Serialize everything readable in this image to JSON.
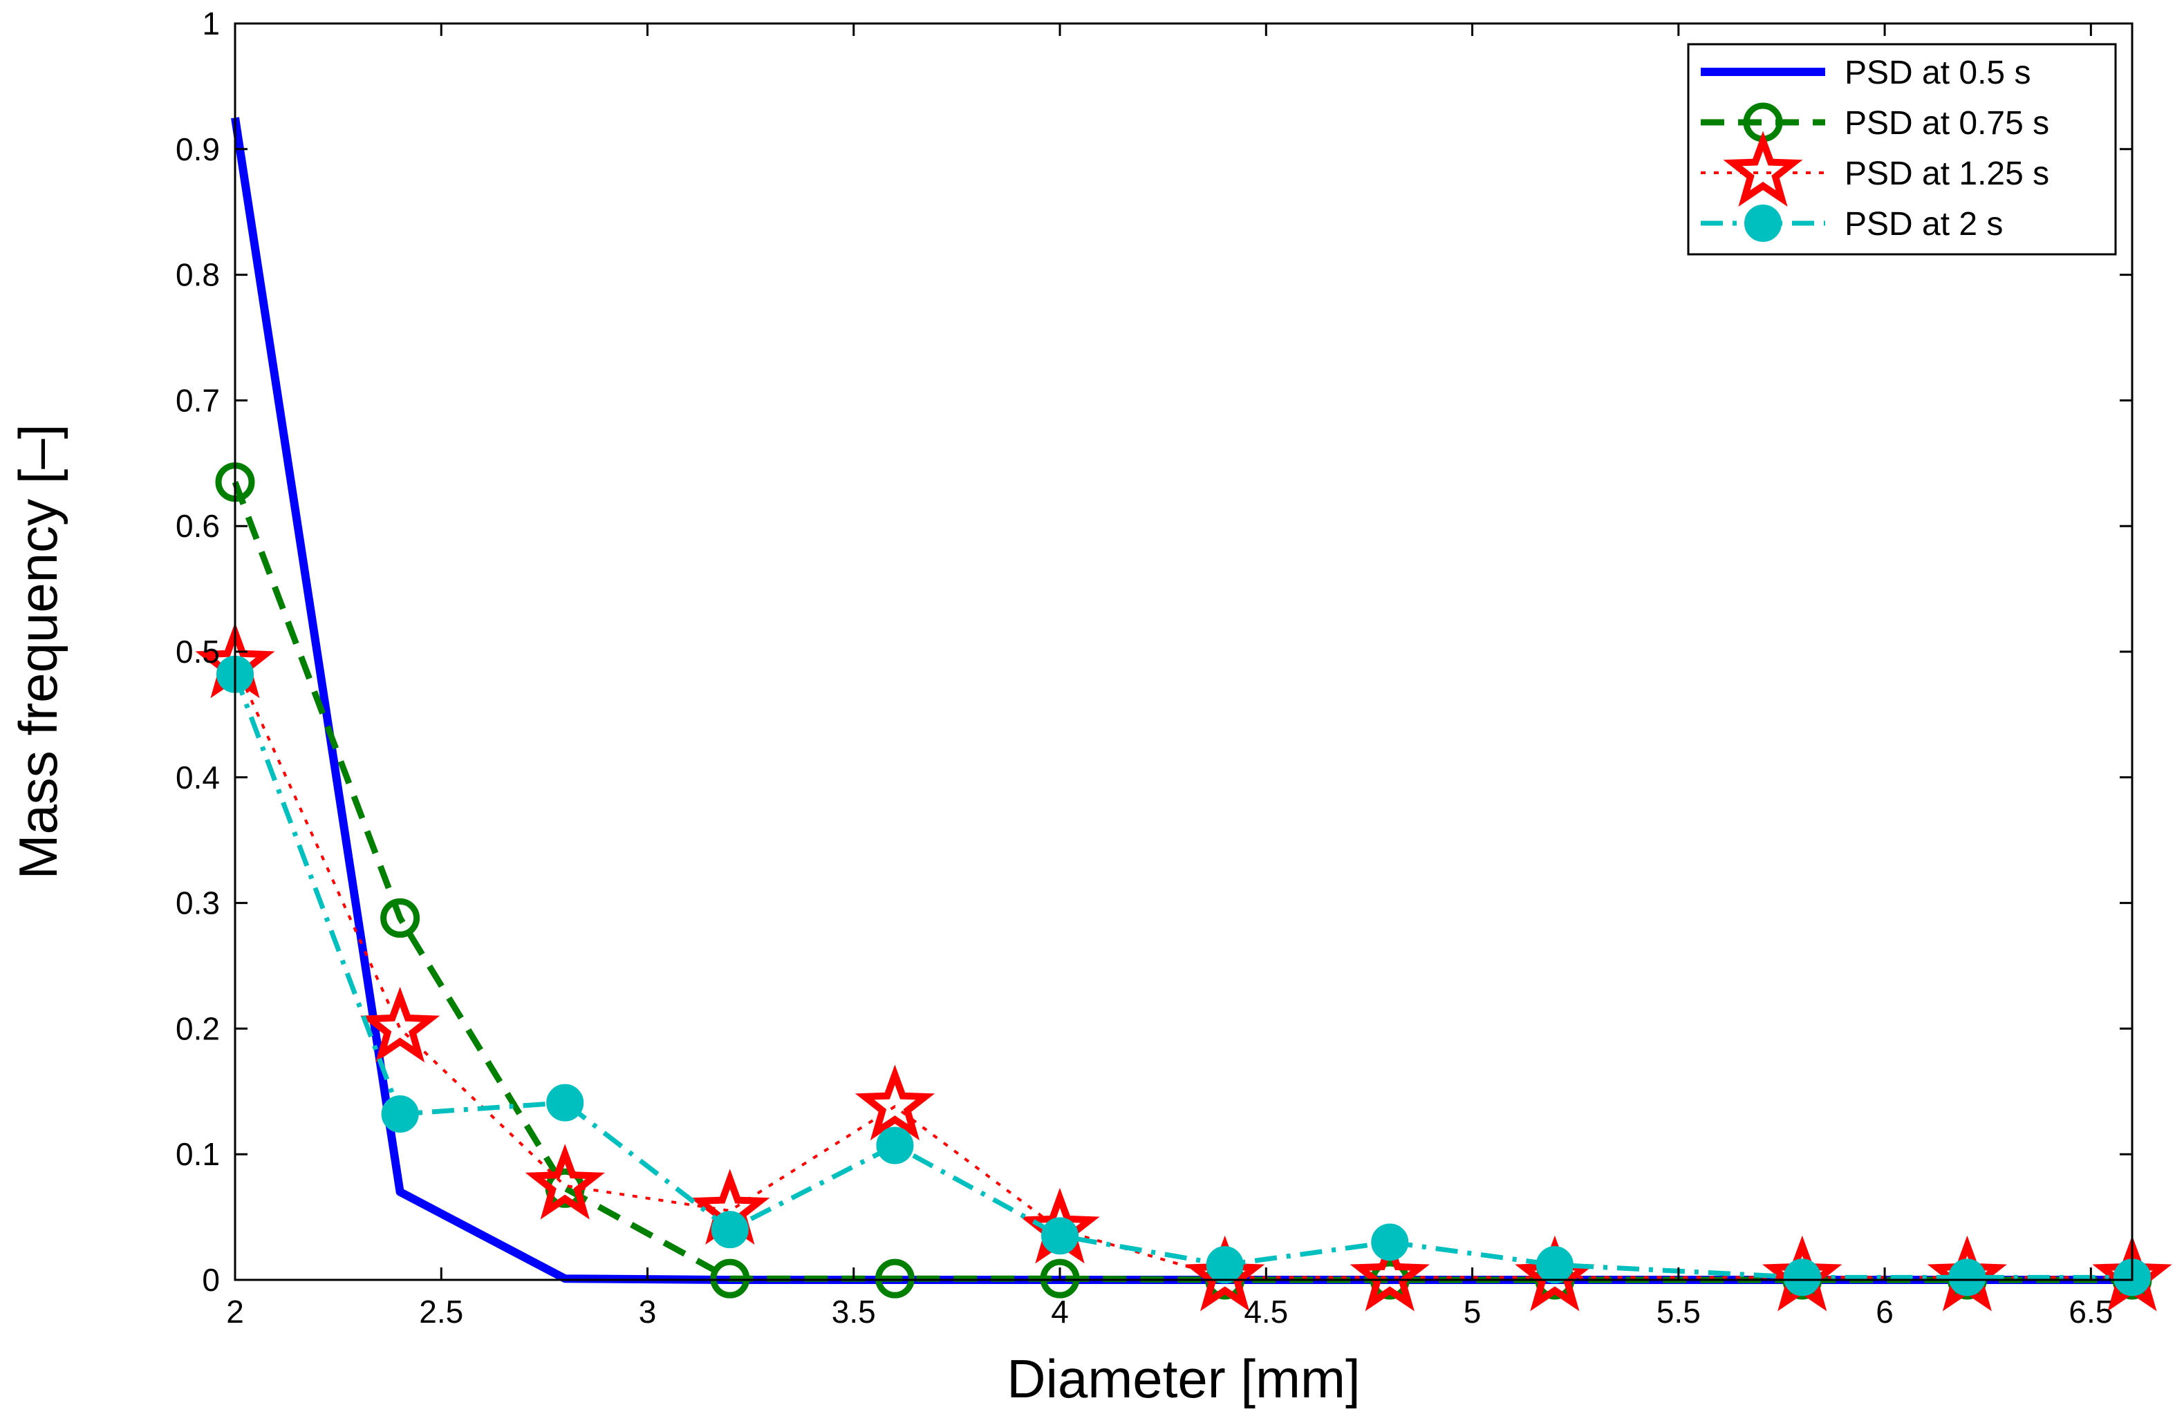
{
  "chart_data": {
    "type": "line",
    "xlabel": "Diameter [mm]",
    "ylabel": "Mass frequency [–]",
    "xlim": [
      2,
      6.6
    ],
    "ylim": [
      0,
      1
    ],
    "x_ticks": [
      2,
      2.5,
      3,
      3.5,
      4,
      4.5,
      5,
      5.5,
      6,
      6.5
    ],
    "x_tick_labels": [
      "2",
      "2.5",
      "3",
      "3.5",
      "4",
      "4.5",
      "5",
      "5.5",
      "6",
      "6.5"
    ],
    "y_ticks": [
      0,
      0.1,
      0.2,
      0.3,
      0.4,
      0.5,
      0.6,
      0.7,
      0.8,
      0.9,
      1
    ],
    "y_tick_labels": [
      "0",
      "0.1",
      "0.2",
      "0.3",
      "0.4",
      "0.5",
      "0.6",
      "0.7",
      "0.8",
      "0.9",
      "1"
    ],
    "grid": false,
    "legend_position": "top-right",
    "x": [
      2.0,
      2.4,
      2.8,
      3.2,
      3.6,
      4.0,
      4.4,
      4.8,
      5.2,
      5.8,
      6.2,
      6.6
    ],
    "series": [
      {
        "name": "PSD at 0.5 s",
        "color": "#0000ff",
        "line_style": "solid",
        "marker": "none",
        "values": [
          0.925,
          0.07,
          0.001,
          0.0,
          0.0,
          0.0,
          0.0,
          0.0,
          0.0,
          0.0,
          0.0,
          0.0
        ]
      },
      {
        "name": "PSD at 0.75 s",
        "color": "#007f00",
        "line_style": "dashed",
        "marker": "circle-open",
        "values": [
          0.635,
          0.288,
          0.073,
          0.001,
          0.001,
          0.001,
          0.0,
          0.0,
          0.0,
          0.0,
          0.0,
          0.0
        ]
      },
      {
        "name": "PSD at 1.25 s",
        "color": "#ff0000",
        "line_style": "dotted",
        "marker": "star",
        "values": [
          0.49,
          0.2,
          0.075,
          0.055,
          0.138,
          0.04,
          0.002,
          0.002,
          0.002,
          0.002,
          0.002,
          0.002
        ]
      },
      {
        "name": "PSD at 2 s",
        "color": "#00bfbf",
        "line_style": "dash-dot",
        "marker": "circle-filled",
        "values": [
          0.482,
          0.132,
          0.141,
          0.04,
          0.107,
          0.035,
          0.012,
          0.03,
          0.012,
          0.002,
          0.002,
          0.002
        ]
      }
    ]
  }
}
